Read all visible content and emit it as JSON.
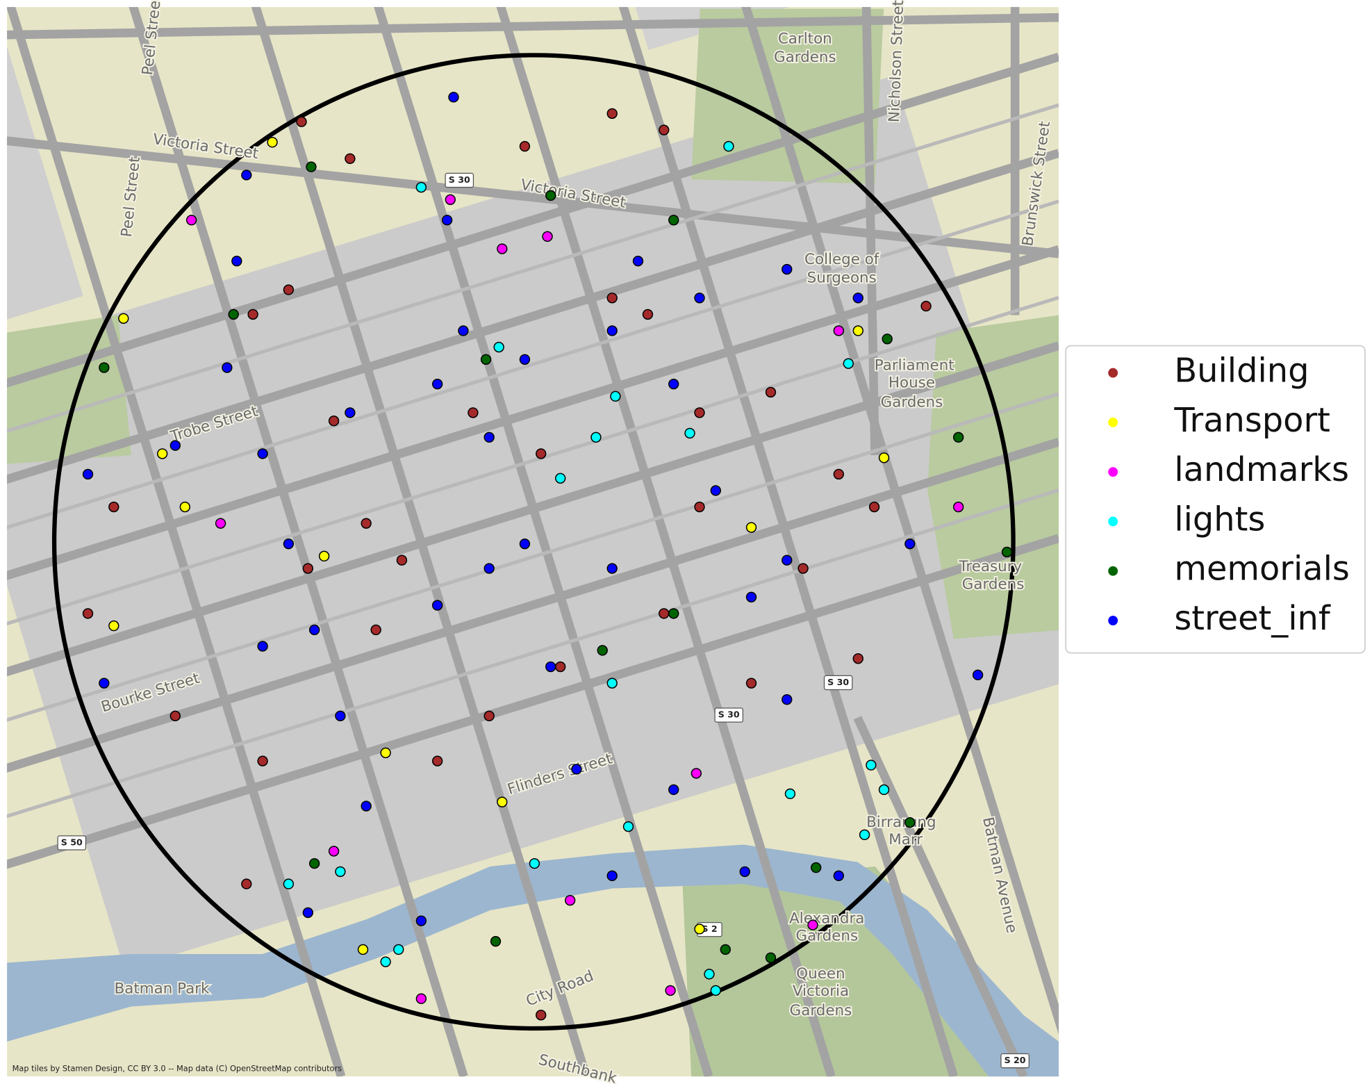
{
  "chart_data": {
    "type": "scatter",
    "xlim": [
      144.95,
      144.9825
    ],
    "ylim": [
      -37.8268,
      -37.8007
    ],
    "legend": "right",
    "series": [
      {
        "name": "Building",
        "color": "#a52a2a",
        "x": [
          144.9591,
          144.9606,
          144.966,
          144.9687,
          144.9703,
          144.9587,
          144.9576,
          144.9601,
          144.9611,
          144.9593,
          144.9533,
          144.9525,
          144.9552,
          144.9579,
          144.9614,
          144.9622,
          144.9644,
          144.9665,
          144.9687,
          144.9698,
          144.9714,
          144.9736,
          144.9757,
          144.9768,
          144.9784,
          144.9714,
          144.9703,
          144.973,
          144.9671,
          144.9649,
          144.9633,
          144.9574,
          144.9665,
          144.9746,
          144.9763
        ],
        "y": [
          -37.8035,
          -37.8044,
          -37.8041,
          -37.8033,
          -37.8037,
          -37.8076,
          -37.8082,
          -37.8108,
          -37.8133,
          -37.8144,
          -37.8129,
          -37.8155,
          -37.818,
          -37.8191,
          -37.8159,
          -37.8142,
          -37.8106,
          -37.8116,
          -37.8078,
          -37.8082,
          -37.8106,
          -37.8101,
          -37.8121,
          -37.8129,
          -37.808,
          -37.8129,
          -37.8155,
          -37.8172,
          -37.8168,
          -37.818,
          -37.8191,
          -37.8221,
          -37.8253,
          -37.8144,
          -37.8166
        ]
      },
      {
        "name": "Transport",
        "color": "#ffff00",
        "x": [
          144.9582,
          144.9536,
          144.9548,
          144.9598,
          144.9617,
          144.9653,
          144.9714,
          144.973,
          144.9771,
          144.9763,
          144.9555,
          144.9533,
          144.961
        ],
        "y": [
          -37.804,
          -37.8083,
          -37.8116,
          -37.8141,
          -37.8189,
          -37.8201,
          -37.8232,
          -37.8134,
          -37.8117,
          -37.8086,
          -37.8129,
          -37.8158,
          -37.8237
        ]
      },
      {
        "name": "landmarks",
        "color": "#ff00ff",
        "x": [
          144.9557,
          144.9566,
          144.9601,
          144.9637,
          144.9667,
          144.9653,
          144.9794,
          144.9749,
          144.9705,
          144.9628,
          144.9674,
          144.9713,
          144.9757
        ],
        "y": [
          -37.8059,
          -37.8133,
          -37.8213,
          -37.8054,
          -37.8063,
          -37.8066,
          -37.8129,
          -37.8231,
          -37.8247,
          -37.8249,
          -37.8225,
          -37.8194,
          -37.8086
        ]
      },
      {
        "name": "lights",
        "color": "#00ffff",
        "x": [
          144.9723,
          144.9628,
          144.9652,
          144.9682,
          144.9671,
          144.9711,
          144.9688,
          144.9687,
          144.9742,
          144.9767,
          144.9771,
          144.9765,
          144.9692,
          144.9663,
          144.9587,
          144.9603,
          144.9621,
          144.9617,
          144.9717,
          144.9719,
          144.976
        ],
        "y": [
          -37.8041,
          -37.8051,
          -37.809,
          -37.8112,
          -37.8122,
          -37.8111,
          -37.8102,
          -37.8172,
          -37.8199,
          -37.8192,
          -37.8198,
          -37.8209,
          -37.8207,
          -37.8216,
          -37.8221,
          -37.8218,
          -37.8237,
          -37.824,
          -37.8243,
          -37.8247,
          -37.8094
        ]
      },
      {
        "name": "memorials",
        "color": "#006400",
        "x": [
          144.9594,
          144.957,
          144.953,
          144.9668,
          144.9706,
          144.9648,
          144.9772,
          144.9794,
          144.9809,
          144.9684,
          144.9595,
          144.975,
          144.9651,
          144.9722,
          144.9736,
          144.9706,
          144.9779
        ],
        "y": [
          -37.8046,
          -37.8082,
          -37.8095,
          -37.8053,
          -37.8059,
          -37.8093,
          -37.8088,
          -37.8112,
          -37.814,
          -37.8164,
          -37.8216,
          -37.8217,
          -37.8235,
          -37.8237,
          -37.8239,
          -37.8155,
          -37.8206
        ]
      },
      {
        "name": "street_inf",
        "color": "#0000ff",
        "x": [
          144.9574,
          144.9571,
          144.9568,
          144.9579,
          144.9587,
          144.9595,
          144.9603,
          144.9611,
          144.9638,
          144.9636,
          144.9641,
          144.9649,
          144.966,
          144.9668,
          144.9676,
          144.9695,
          144.9706,
          144.9719,
          144.973,
          144.9741,
          144.9525,
          144.9552,
          144.9606,
          144.9633,
          144.966,
          144.9687,
          144.9714,
          144.9741,
          144.9763,
          144.953,
          144.9579,
          144.9633,
          144.9687,
          144.9741,
          144.9779,
          144.9593,
          144.9628,
          144.9687,
          144.9728,
          144.9757,
          144.98,
          144.9706,
          144.9649
        ],
        "y": [
          -37.8048,
          -37.8069,
          -37.8095,
          -37.8116,
          -37.8138,
          -37.8159,
          -37.818,
          -37.8202,
          -37.8029,
          -37.8059,
          -37.8086,
          -37.8112,
          -37.8138,
          -37.8168,
          -37.8193,
          -37.8069,
          -37.8099,
          -37.8125,
          -37.8151,
          -37.8176,
          -37.8121,
          -37.8114,
          -37.8106,
          -37.8099,
          -37.8093,
          -37.8086,
          -37.8078,
          -37.8071,
          -37.8078,
          -37.8172,
          -37.8163,
          -37.8153,
          -37.8144,
          -37.8142,
          -37.8138,
          -37.8228,
          -37.823,
          -37.8219,
          -37.8218,
          -37.8219,
          -37.817,
          -37.8198,
          -37.8144
        ]
      }
    ]
  },
  "map": {
    "labels": [
      "Carlton",
      "Gardens",
      "Nicholson Street",
      "Brunswick Street",
      "Victoria Street",
      "Victoria Street",
      "Peel Street",
      "Peel Street",
      "College of",
      "Surgeons",
      "Parliament",
      "House",
      "Gardens",
      "Treasury",
      "Gardens",
      "Trobe Street",
      "Bourke Street",
      "Flinders Street",
      "Batman Park",
      "Alexandra",
      "Gardens",
      "Queen",
      "Victoria",
      "Gardens",
      "Birrarung",
      "Marr",
      "Batman Avenue",
      "City Road",
      "Southbank"
    ],
    "shields": [
      "S 30",
      "S 30",
      "S 30",
      "S 50",
      "S 20",
      "S 2"
    ],
    "attribution": "Map tiles by Stamen Design, CC BY 3.0 -- Map data (C) OpenStreetMap contributors"
  }
}
